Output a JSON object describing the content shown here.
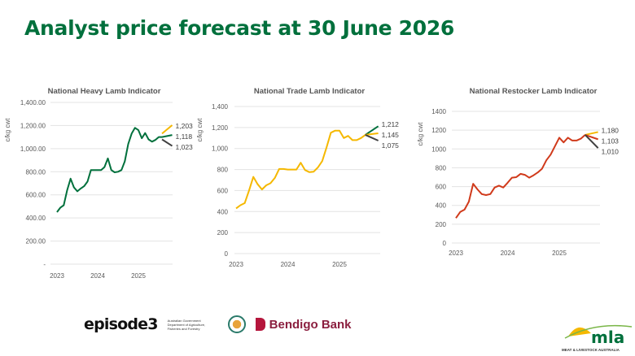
{
  "page_title": "Analyst price forecast at 30 June 2026",
  "chart_data": [
    {
      "type": "line",
      "title": "National Heavy Lamb Indicator",
      "ylabel": "c/kg cwt",
      "ylim": [
        0,
        1400
      ],
      "yticks": [
        "-",
        "200.00",
        "400.00",
        "600.00",
        "800.00",
        "1,000.00",
        "1,200.00",
        "1,400.00"
      ],
      "xticks": [
        "2023",
        "2024",
        "2025"
      ],
      "grid": true,
      "actual": {
        "color": "#00703c",
        "start": 2023.0,
        "values": [
          450,
          490,
          510,
          640,
          740,
          665,
          630,
          655,
          675,
          715,
          815,
          815,
          815,
          815,
          840,
          915,
          815,
          795,
          800,
          815,
          890,
          1040,
          1130,
          1180,
          1160,
          1090,
          1135,
          1080,
          1060,
          1075,
          1100,
          1100
        ]
      },
      "forecasts": [
        {
          "color": "#f5b800",
          "from": [
            2025.58,
            1130
          ],
          "to": [
            2025.83,
            1203
          ],
          "label": "1,203"
        },
        {
          "color": "#00703c",
          "from": [
            2025.58,
            1100
          ],
          "to": [
            2025.83,
            1118
          ],
          "label": "1,118"
        },
        {
          "color": "#404040",
          "from": [
            2025.58,
            1080
          ],
          "to": [
            2025.83,
            1023
          ],
          "label": "1,023"
        }
      ]
    },
    {
      "type": "line",
      "title": "National Trade Lamb Indicator",
      "ylabel": "c/kg cwt",
      "ylim": [
        0,
        1400
      ],
      "yticks": [
        "0",
        "200",
        "400",
        "600",
        "800",
        "1,000",
        "1,200",
        "1,400"
      ],
      "xticks": [
        "2023",
        "2024",
        "2025"
      ],
      "grid": true,
      "actual": {
        "color": "#f5b800",
        "start": 2023.0,
        "values": [
          430,
          460,
          480,
          600,
          730,
          660,
          610,
          650,
          670,
          720,
          805,
          805,
          800,
          800,
          800,
          865,
          795,
          775,
          780,
          820,
          880,
          1010,
          1150,
          1170,
          1170,
          1100,
          1120,
          1080,
          1080,
          1100,
          1130
        ]
      },
      "forecasts": [
        {
          "color": "#00703c",
          "from": [
            2025.5,
            1130
          ],
          "to": [
            2025.75,
            1212
          ],
          "label": "1,212"
        },
        {
          "color": "#f5b800",
          "from": [
            2025.5,
            1130
          ],
          "to": [
            2025.75,
            1145
          ],
          "label": "1,145"
        },
        {
          "color": "#404040",
          "from": [
            2025.5,
            1130
          ],
          "to": [
            2025.75,
            1075
          ],
          "label": "1,075"
        }
      ]
    },
    {
      "type": "line",
      "title": "National Restocker Lamb Indicator",
      "ylabel": "c/kg cwt",
      "ylim": [
        0,
        1400
      ],
      "yticks": [
        "0",
        "200",
        "400",
        "600",
        "800",
        "1000",
        "1200",
        "1400"
      ],
      "xticks": [
        "2023",
        "2024",
        "2025"
      ],
      "grid": true,
      "actual": {
        "color": "#d03a1b",
        "start": 2023.0,
        "values": [
          265,
          330,
          355,
          440,
          630,
          570,
          520,
          510,
          520,
          590,
          610,
          590,
          640,
          695,
          700,
          735,
          725,
          695,
          720,
          750,
          790,
          880,
          940,
          1030,
          1120,
          1070,
          1120,
          1090,
          1090,
          1110,
          1150
        ]
      },
      "forecasts": [
        {
          "color": "#f5b800",
          "from": [
            2025.5,
            1150
          ],
          "to": [
            2025.75,
            1180
          ],
          "label": "1,180"
        },
        {
          "color": "#d03a1b",
          "from": [
            2025.5,
            1150
          ],
          "to": [
            2025.75,
            1103
          ],
          "label": "1,103"
        },
        {
          "color": "#404040",
          "from": [
            2025.5,
            1150
          ],
          "to": [
            2025.75,
            1010
          ],
          "label": "1,010"
        }
      ]
    }
  ],
  "logos": {
    "episode3": "episode3",
    "gov": [
      "Australian Government",
      "Department of Agriculture,",
      "Fisheries and Forestry"
    ],
    "bendigo": "Bendigo Bank",
    "mla": "mla",
    "mla_sub": "MEAT & LIVESTOCK AUSTRALIA"
  }
}
